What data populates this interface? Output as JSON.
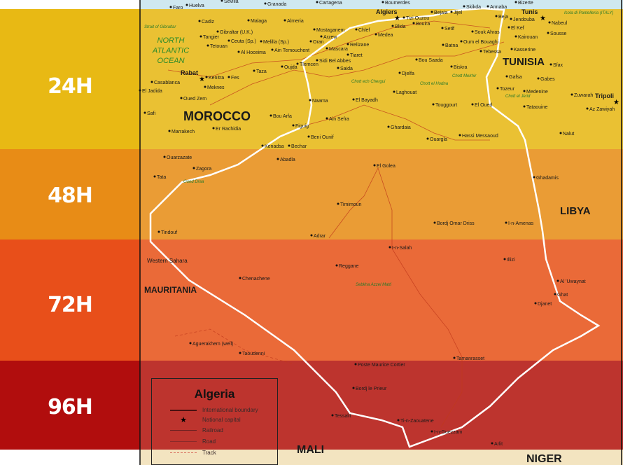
{
  "bands": [
    {
      "label": "24H",
      "color": "#e8b914"
    },
    {
      "label": "48H",
      "color": "#e88c16"
    },
    {
      "label": "72H",
      "color": "#e84f1a"
    },
    {
      "label": "96H",
      "color": "#b10d0d"
    }
  ],
  "map": {
    "land_color": "#f3e4c0",
    "sea_color": "#cfe8f0",
    "border_color": "#ffffff",
    "countries": [
      "MOROCCO",
      "TUNISIA",
      "LIBYA",
      "MAURITANIA",
      "MALI",
      "NIGER"
    ],
    "water_labels": [
      "NORTH ATLANTIC OCEAN"
    ],
    "region_labels": [
      "Western Sahara"
    ],
    "capitals": [
      "Rabat",
      "Algiers",
      "Tunis",
      "Tripoli"
    ],
    "cities": [
      "Faro",
      "Huelva",
      "Sevilla",
      "Granada",
      "Cartagena",
      "Bizerte",
      "Cadiz",
      "Malaga",
      "Almeria",
      "Tangier",
      "Gibraltar (U.K.)",
      "Ceuta (Sp.)",
      "Melilla (Sp.)",
      "Tetouan",
      "Al Hoceima",
      "Oran",
      "Mostaganem",
      "Arzew",
      "Chlef",
      "Medea",
      "Blida",
      "Boumerdes",
      "Tizi Ouzou",
      "Bejaia",
      "Jijel",
      "Skikda",
      "Annaba",
      "Beja",
      "Jendouba",
      "El Kef",
      "Kairouan",
      "Sousse",
      "Nabeul",
      "Setif",
      "Bouira",
      "Batna",
      "Oum el Bouaghi",
      "Souk Ahras",
      "Tebessa",
      "Kasserine",
      "Sfax",
      "Gafsa",
      "Gabes",
      "Tozeur",
      "Medenine",
      "Tataouine",
      "Zuwarah",
      "Az Zawiyah",
      "Nalut",
      "Kenitra",
      "Meknes",
      "Fes",
      "Taza",
      "Oujda",
      "Casablanca",
      "El Jadida",
      "Oued Zem",
      "Safi",
      "Marrakech",
      "Er Rachidia",
      "Bou Arfa",
      "Figuig",
      "Ain Temouchent",
      "Tlemcen",
      "Mascara",
      "Relizane",
      "Tiaret",
      "Sidi Bel Abbes",
      "Saida",
      "Djelfa",
      "Bou Saada",
      "Biskra",
      "Laghouat",
      "El Bayadh",
      "Naama",
      "Ain Sefra",
      "Touggourt",
      "El Oued",
      "Ghardaia",
      "Ouargla",
      "Hassi Messaoud",
      "Beni Ounif",
      "Bechar",
      "Kenadsa",
      "Abadla",
      "Ouarzazate",
      "Zagora",
      "Tata",
      "Tindouf",
      "El Golea",
      "Timimoun",
      "Adrar",
      "Bordj Omar Driss",
      "I-n-Amenas",
      "Ghadamis",
      "I-n-Salah",
      "Reggane",
      "Illizi",
      "Djanet",
      "Ghat",
      "Al 'Uwaynat",
      "Chenachene",
      "Taoudenni",
      "Aguerakhem (well)",
      "Tamanrasset",
      "Poste Maurice Cortier",
      "Bordj le Prieur",
      "Tessalit",
      "Ti-n-Zaouatene",
      "I-n-Guezzam",
      "Arlit"
    ],
    "features": [
      "Chott ech Chergui",
      "Chott el Hodna",
      "Chott Melrhir",
      "Chott el Jerid",
      "Sebkha Azzel Matti",
      "Oued Draa",
      "Strait of Gibraltar",
      "Isola di Pantelleria (ITALY)"
    ]
  },
  "legend": {
    "title": "Algeria",
    "items": [
      {
        "label": "International boundary",
        "symbol": "solid-line"
      },
      {
        "label": "National capital",
        "symbol": "star-icon"
      },
      {
        "label": "Railroad",
        "symbol": "railroad-line"
      },
      {
        "label": "Road",
        "symbol": "thin-line"
      },
      {
        "label": "Track",
        "symbol": "dashed-line"
      }
    ]
  }
}
